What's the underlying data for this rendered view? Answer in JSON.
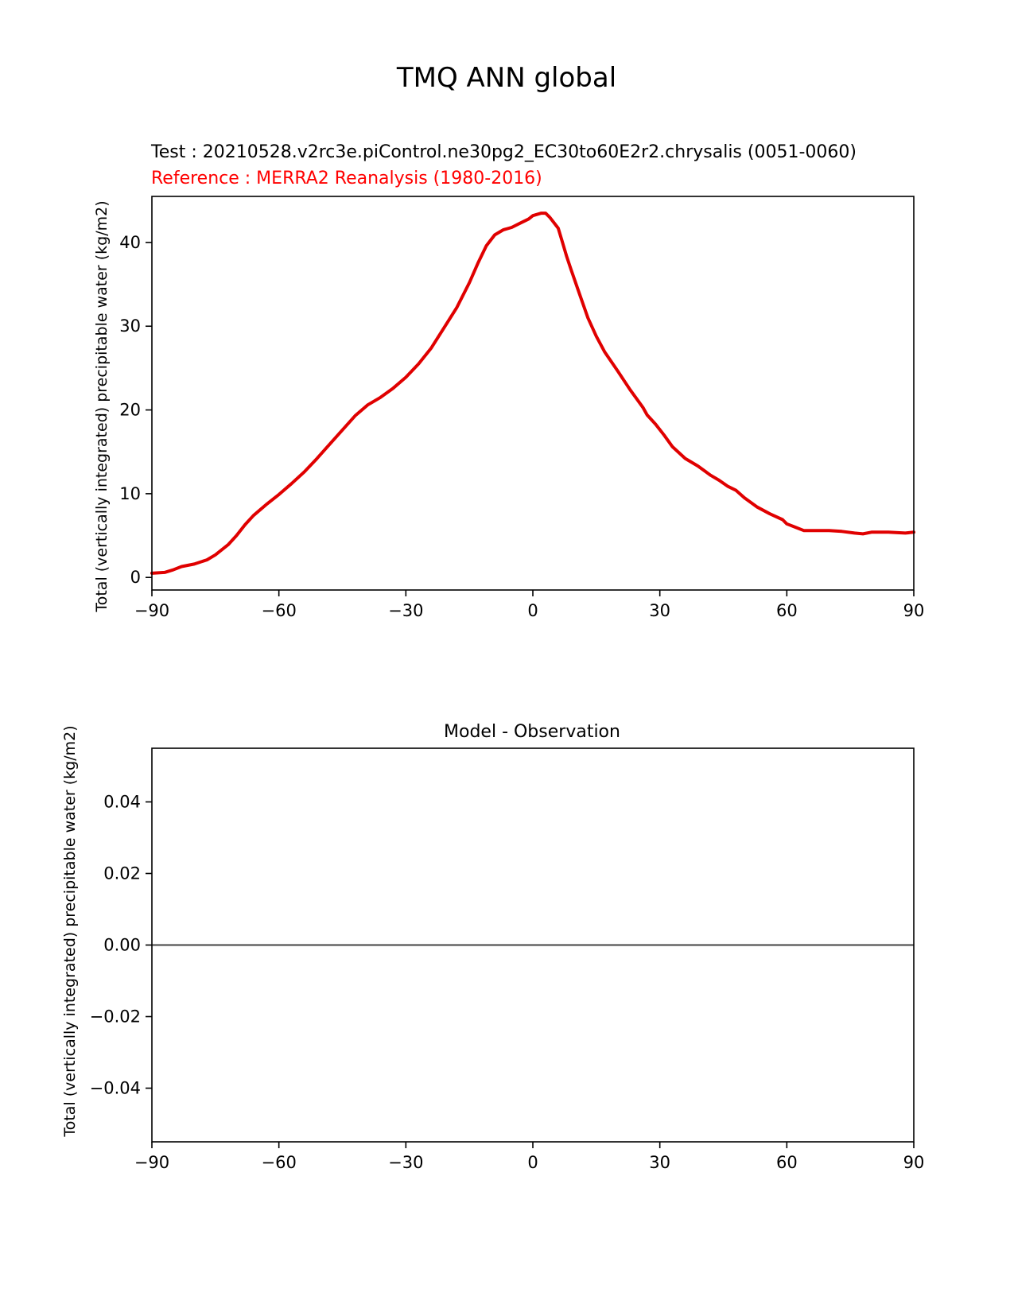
{
  "figure_title": "TMQ ANN global",
  "chart_data": [
    {
      "type": "line",
      "title_test": "Test : 20210528.v2rc3e.piControl.ne30pg2_EC30to60E2r2.chrysalis (0051-0060)",
      "title_reference": "Reference : MERRA2 Reanalysis (1980-2016)",
      "ylabel": "Total (vertically integrated) precipitable water (kg/m2)",
      "xlim": [
        -90,
        90
      ],
      "ylim": [
        -1.5,
        45.5
      ],
      "xticks": [
        -90,
        -60,
        -30,
        0,
        30,
        60,
        90
      ],
      "xtick_labels": [
        "−90",
        "−60",
        "−30",
        "0",
        "30",
        "60",
        "90"
      ],
      "yticks": [
        0,
        10,
        20,
        30,
        40
      ],
      "ytick_labels": [
        "0",
        "10",
        "20",
        "30",
        "40"
      ],
      "grid": false,
      "series": [
        {
          "color": "#e00000",
          "x": [
            -90,
            -87,
            -85,
            -83,
            -80,
            -77,
            -75,
            -72,
            -70,
            -68,
            -66,
            -63,
            -60,
            -57,
            -54,
            -51,
            -48,
            -45,
            -42,
            -39,
            -36,
            -33,
            -30,
            -27,
            -24,
            -21,
            -18,
            -15,
            -13,
            -11,
            -9,
            -7,
            -5,
            -3,
            -1,
            0,
            2,
            3,
            4,
            6,
            7,
            8,
            9,
            11,
            13,
            15,
            17,
            20,
            23,
            26,
            27,
            29,
            31,
            33,
            36,
            39,
            42,
            44,
            46,
            48,
            50,
            53,
            56,
            59,
            60,
            62,
            64,
            67,
            70,
            73,
            76,
            78,
            80,
            84,
            88,
            90
          ],
          "y": [
            0.5,
            0.6,
            0.9,
            1.3,
            1.6,
            2.1,
            2.7,
            3.9,
            5.0,
            6.3,
            7.4,
            8.7,
            9.9,
            11.2,
            12.6,
            14.2,
            15.9,
            17.6,
            19.3,
            20.6,
            21.5,
            22.6,
            23.9,
            25.5,
            27.4,
            29.8,
            32.2,
            35.2,
            37.5,
            39.6,
            40.9,
            41.5,
            41.8,
            42.3,
            42.8,
            43.2,
            43.5,
            43.5,
            43.0,
            41.7,
            40.0,
            38.3,
            36.8,
            33.9,
            31.0,
            28.8,
            26.9,
            24.7,
            22.4,
            20.3,
            19.4,
            18.3,
            17.0,
            15.6,
            14.2,
            13.3,
            12.2,
            11.6,
            10.9,
            10.4,
            9.5,
            8.4,
            7.6,
            6.9,
            6.4,
            6.0,
            5.6,
            5.6,
            5.6,
            5.5,
            5.3,
            5.2,
            5.4,
            5.4,
            5.3,
            5.4
          ]
        }
      ]
    },
    {
      "type": "line",
      "title": "Model - Observation",
      "ylabel": "Total (vertically integrated) precipitable water (kg/m2)",
      "xlim": [
        -90,
        90
      ],
      "ylim": [
        -0.055,
        0.055
      ],
      "xticks": [
        -90,
        -60,
        -30,
        0,
        30,
        60,
        90
      ],
      "xtick_labels": [
        "−90",
        "−60",
        "−30",
        "0",
        "30",
        "60",
        "90"
      ],
      "yticks": [
        0.04,
        0.02,
        0.0,
        -0.02,
        -0.04
      ],
      "ytick_labels": [
        "0.04",
        "0.02",
        "0.00",
        "−0.02",
        "−0.04"
      ],
      "grid": false,
      "zero_line": true,
      "series": []
    }
  ]
}
